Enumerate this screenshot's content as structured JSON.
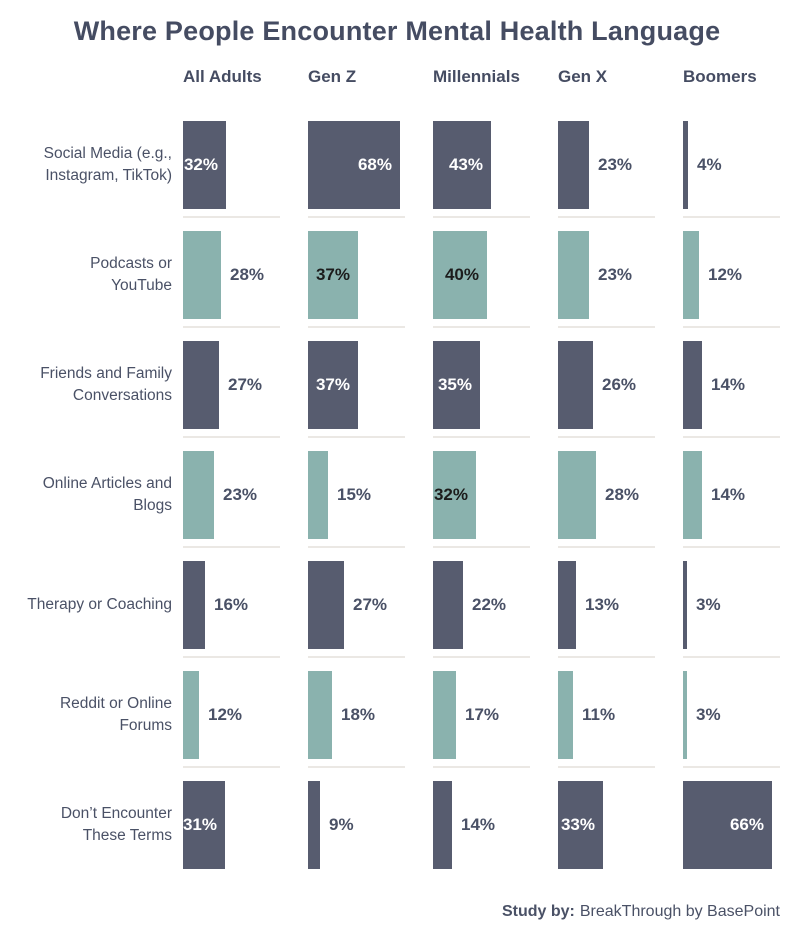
{
  "title": "Where People Encounter Mental Health Language",
  "footer": {
    "label": "Study by:",
    "source": "BreakThrough by BasePoint"
  },
  "colors": {
    "dark": "#575c6f",
    "teal": "#8ab2ae",
    "label_text": "#4a5166",
    "inside_label_on_dark": "#ffffff",
    "inside_label_on_teal": "#1c1c1c",
    "separator": "#ebe8e4"
  },
  "chart_data": {
    "type": "bar",
    "orientation": "horizontal",
    "unit": "%",
    "value_range": [
      0,
      100
    ],
    "inside_label_threshold_percent": 30,
    "categories": [
      "All Adults",
      "Gen Z",
      "Millennials",
      "Gen X",
      "Boomers"
    ],
    "rows": [
      {
        "label": "Social Media (e.g.,\nInstagram, TikTok)",
        "color": "dark",
        "values": [
          32,
          68,
          43,
          23,
          4
        ]
      },
      {
        "label": "Podcasts or\nYouTube",
        "color": "teal",
        "values": [
          28,
          37,
          40,
          23,
          12
        ]
      },
      {
        "label": "Friends and Family\nConversations",
        "color": "dark",
        "values": [
          27,
          37,
          35,
          26,
          14
        ]
      },
      {
        "label": "Online Articles and\nBlogs",
        "color": "teal",
        "values": [
          23,
          15,
          32,
          28,
          14
        ]
      },
      {
        "label": "Therapy or Coaching",
        "color": "dark",
        "values": [
          16,
          27,
          22,
          13,
          3
        ]
      },
      {
        "label": "Reddit or Online\nForums",
        "color": "teal",
        "values": [
          12,
          18,
          17,
          11,
          3
        ]
      },
      {
        "label": "Don’t Encounter\nThese Terms",
        "color": "dark",
        "values": [
          31,
          9,
          14,
          33,
          66
        ]
      }
    ]
  }
}
